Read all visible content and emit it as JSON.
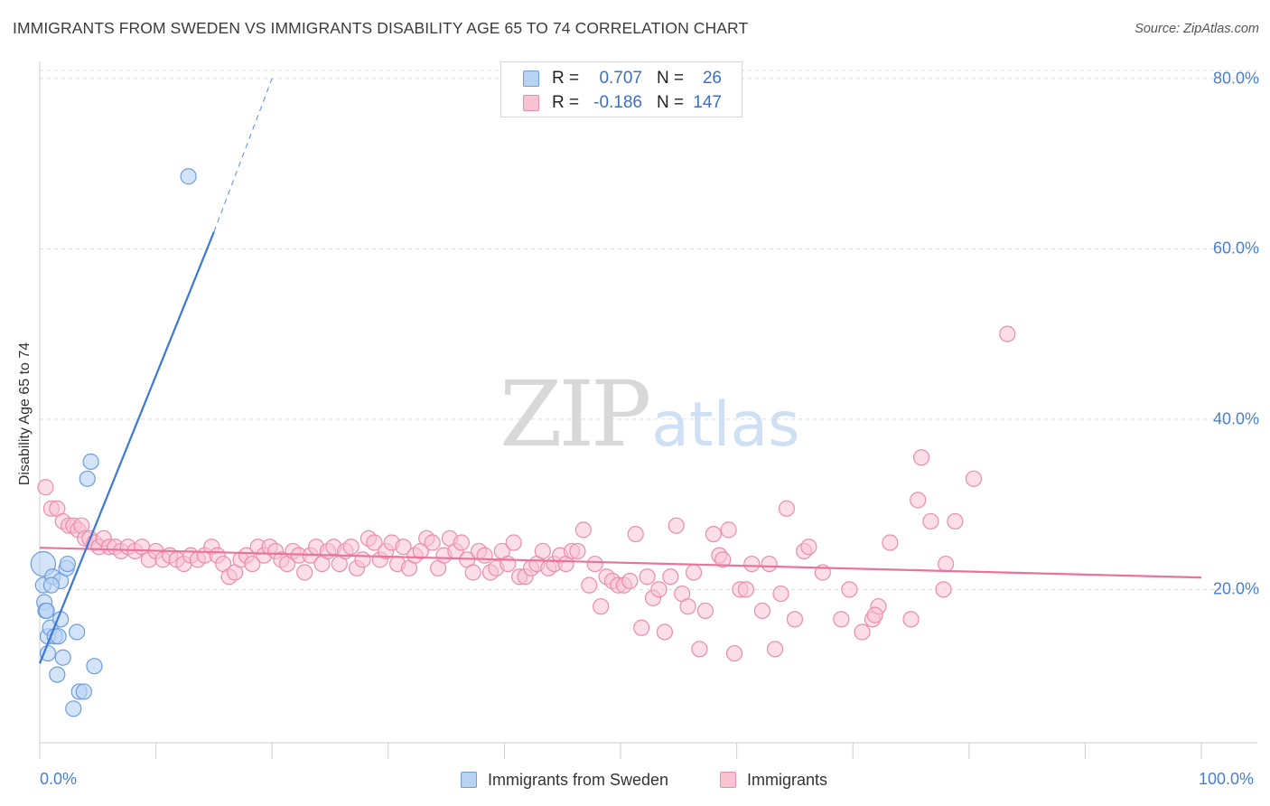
{
  "title": "IMMIGRANTS FROM SWEDEN VS IMMIGRANTS DISABILITY AGE 65 TO 74 CORRELATION CHART",
  "source": "Source: ZipAtlas.com",
  "watermark": {
    "zip": "ZIP",
    "atlas": "atlas"
  },
  "legend": {
    "rows": [
      {
        "r_label": "R =",
        "r_value": "0.707",
        "n_label": "N =",
        "n_value": "26",
        "fill": "#b7d2f3",
        "stroke": "#6d9de0"
      },
      {
        "r_label": "R =",
        "r_value": "-0.186",
        "n_label": "N =",
        "n_value": "147",
        "fill": "#f8c3d3",
        "stroke": "#ec8cab"
      }
    ]
  },
  "bottom_legend": [
    {
      "label": "Immigrants from Sweden",
      "fill": "#b7d2f3",
      "stroke": "#6d9de0"
    },
    {
      "label": "Immigrants",
      "fill": "#f8c3d3",
      "stroke": "#ec8cab"
    }
  ],
  "chart_data": {
    "type": "scatter",
    "title": "IMMIGRANTS FROM SWEDEN VS IMMIGRANTS DISABILITY AGE 65 TO 74 CORRELATION CHART",
    "xlabel": "",
    "ylabel": "Disability Age 65 to 74",
    "xlim": [
      0,
      100
    ],
    "ylim": [
      2,
      82
    ],
    "x_ticks": [
      "0.0%",
      "100.0%"
    ],
    "y_ticks": [
      {
        "value": 20,
        "label": "20.0%"
      },
      {
        "value": 40,
        "label": "40.0%"
      },
      {
        "value": 60,
        "label": "60.0%"
      },
      {
        "value": 80,
        "label": "80.0%"
      }
    ],
    "grid": "horizontal dashed",
    "colors": {
      "sweden": "#3a78d4",
      "immigrants": "#e9739a"
    },
    "series": [
      {
        "name": "Immigrants from Sweden",
        "color": "#3a78d4",
        "trend": {
          "x": [
            0,
            15
          ],
          "y": [
            11.3,
            62.0
          ],
          "dashed_to": {
            "x": 20,
            "y": 80
          }
        },
        "points": [
          [
            0.3,
            23.0
          ],
          [
            0.3,
            20.5
          ],
          [
            0.4,
            18.5
          ],
          [
            0.5,
            17.5
          ],
          [
            0.7,
            14.5
          ],
          [
            0.7,
            12.5
          ],
          [
            0.9,
            15.5
          ],
          [
            1.1,
            21.5
          ],
          [
            1.3,
            14.5
          ],
          [
            1.5,
            10.0
          ],
          [
            1.6,
            14.5
          ],
          [
            1.8,
            16.5
          ],
          [
            1.8,
            21.0
          ],
          [
            2.0,
            12.0
          ],
          [
            2.3,
            22.5
          ],
          [
            2.4,
            23.0
          ],
          [
            2.9,
            6.0
          ],
          [
            3.2,
            15.0
          ],
          [
            3.4,
            8.0
          ],
          [
            3.8,
            8.0
          ],
          [
            4.1,
            33.0
          ],
          [
            4.4,
            35.0
          ],
          [
            4.7,
            11.0
          ],
          [
            12.8,
            68.5
          ],
          [
            1.0,
            20.5
          ],
          [
            0.6,
            17.5
          ]
        ],
        "radii": [
          16,
          10,
          10,
          10,
          10,
          10,
          10,
          10,
          10,
          10,
          10,
          10,
          10,
          10,
          10,
          10,
          10,
          10,
          10,
          10,
          10,
          10,
          10,
          10,
          10,
          10
        ]
      },
      {
        "name": "Immigrants",
        "color": "#e9739a",
        "trend": {
          "x": [
            0,
            100
          ],
          "y": [
            24.9,
            21.4
          ]
        },
        "points": [
          [
            0.5,
            32.0
          ],
          [
            1.0,
            29.5
          ],
          [
            1.5,
            29.5
          ],
          [
            2.0,
            28.0
          ],
          [
            2.5,
            27.5
          ],
          [
            2.9,
            27.5
          ],
          [
            3.3,
            27.0
          ],
          [
            3.6,
            27.5
          ],
          [
            3.9,
            26.0
          ],
          [
            4.3,
            26.0
          ],
          [
            4.7,
            25.5
          ],
          [
            5.1,
            25.0
          ],
          [
            5.5,
            26.0
          ],
          [
            6.0,
            25.0
          ],
          [
            6.5,
            25.0
          ],
          [
            7.0,
            24.5
          ],
          [
            7.6,
            25.0
          ],
          [
            8.2,
            24.5
          ],
          [
            8.8,
            25.0
          ],
          [
            9.4,
            23.5
          ],
          [
            10.0,
            24.5
          ],
          [
            10.6,
            23.5
          ],
          [
            11.2,
            24.0
          ],
          [
            11.8,
            23.5
          ],
          [
            12.4,
            23.0
          ],
          [
            13.0,
            24.0
          ],
          [
            13.6,
            23.5
          ],
          [
            14.2,
            24.0
          ],
          [
            14.8,
            25.0
          ],
          [
            15.3,
            24.0
          ],
          [
            15.8,
            23.0
          ],
          [
            16.3,
            21.5
          ],
          [
            16.8,
            22.0
          ],
          [
            17.3,
            23.5
          ],
          [
            17.8,
            24.0
          ],
          [
            18.3,
            23.0
          ],
          [
            18.8,
            25.0
          ],
          [
            19.3,
            24.0
          ],
          [
            19.8,
            25.0
          ],
          [
            20.3,
            24.5
          ],
          [
            20.8,
            23.5
          ],
          [
            21.3,
            23.0
          ],
          [
            21.8,
            24.5
          ],
          [
            22.3,
            24.0
          ],
          [
            22.8,
            22.0
          ],
          [
            23.3,
            24.0
          ],
          [
            23.8,
            25.0
          ],
          [
            24.3,
            23.0
          ],
          [
            24.8,
            24.5
          ],
          [
            25.3,
            25.0
          ],
          [
            25.8,
            23.0
          ],
          [
            26.3,
            24.5
          ],
          [
            26.8,
            25.0
          ],
          [
            27.3,
            22.5
          ],
          [
            27.8,
            23.5
          ],
          [
            28.3,
            26.0
          ],
          [
            28.8,
            25.5
          ],
          [
            29.3,
            23.5
          ],
          [
            29.8,
            24.5
          ],
          [
            30.3,
            25.5
          ],
          [
            30.8,
            23.0
          ],
          [
            31.3,
            25.0
          ],
          [
            31.8,
            22.5
          ],
          [
            32.3,
            24.0
          ],
          [
            32.8,
            24.5
          ],
          [
            33.3,
            26.0
          ],
          [
            33.8,
            25.5
          ],
          [
            34.3,
            22.5
          ],
          [
            34.8,
            24.0
          ],
          [
            35.3,
            26.0
          ],
          [
            35.8,
            24.5
          ],
          [
            36.3,
            25.5
          ],
          [
            36.8,
            23.5
          ],
          [
            37.3,
            22.0
          ],
          [
            37.8,
            24.5
          ],
          [
            38.3,
            24.0
          ],
          [
            38.8,
            22.0
          ],
          [
            39.3,
            22.5
          ],
          [
            39.8,
            24.5
          ],
          [
            40.3,
            23.0
          ],
          [
            40.8,
            25.5
          ],
          [
            41.3,
            21.5
          ],
          [
            41.8,
            21.5
          ],
          [
            42.3,
            22.5
          ],
          [
            42.8,
            23.0
          ],
          [
            43.3,
            24.5
          ],
          [
            43.8,
            22.5
          ],
          [
            44.3,
            23.0
          ],
          [
            44.8,
            24.0
          ],
          [
            45.3,
            23.0
          ],
          [
            45.8,
            24.5
          ],
          [
            46.3,
            24.5
          ],
          [
            46.8,
            27.0
          ],
          [
            47.3,
            20.5
          ],
          [
            47.8,
            23.0
          ],
          [
            48.3,
            18.0
          ],
          [
            48.8,
            21.5
          ],
          [
            49.3,
            21.0
          ],
          [
            49.8,
            20.5
          ],
          [
            50.3,
            20.5
          ],
          [
            50.8,
            21.0
          ],
          [
            51.3,
            26.5
          ],
          [
            51.8,
            15.5
          ],
          [
            52.3,
            21.5
          ],
          [
            52.8,
            19.0
          ],
          [
            53.3,
            20.0
          ],
          [
            53.8,
            15.0
          ],
          [
            54.3,
            21.5
          ],
          [
            54.8,
            27.5
          ],
          [
            55.3,
            19.5
          ],
          [
            55.8,
            18.0
          ],
          [
            56.3,
            22.0
          ],
          [
            56.8,
            13.0
          ],
          [
            57.3,
            17.5
          ],
          [
            58.0,
            26.5
          ],
          [
            58.5,
            24.0
          ],
          [
            58.8,
            23.5
          ],
          [
            59.3,
            27.0
          ],
          [
            59.8,
            12.5
          ],
          [
            60.3,
            20.0
          ],
          [
            60.8,
            20.0
          ],
          [
            61.3,
            23.0
          ],
          [
            62.2,
            17.5
          ],
          [
            62.8,
            23.0
          ],
          [
            63.3,
            13.0
          ],
          [
            63.8,
            19.5
          ],
          [
            64.3,
            29.5
          ],
          [
            65.0,
            16.5
          ],
          [
            65.8,
            24.5
          ],
          [
            66.2,
            25.0
          ],
          [
            67.4,
            22.0
          ],
          [
            69.0,
            16.5
          ],
          [
            69.7,
            20.0
          ],
          [
            70.8,
            15.0
          ],
          [
            71.7,
            16.5
          ],
          [
            72.2,
            18.0
          ],
          [
            73.2,
            25.5
          ],
          [
            75.0,
            16.5
          ],
          [
            75.6,
            30.5
          ],
          [
            75.9,
            35.5
          ],
          [
            76.7,
            28.0
          ],
          [
            77.8,
            20.0
          ],
          [
            78.0,
            23.0
          ],
          [
            78.8,
            28.0
          ],
          [
            80.4,
            33.0
          ],
          [
            83.3,
            50.0
          ],
          [
            71.9,
            17.0
          ]
        ],
        "radii": [
          10
        ]
      }
    ]
  }
}
